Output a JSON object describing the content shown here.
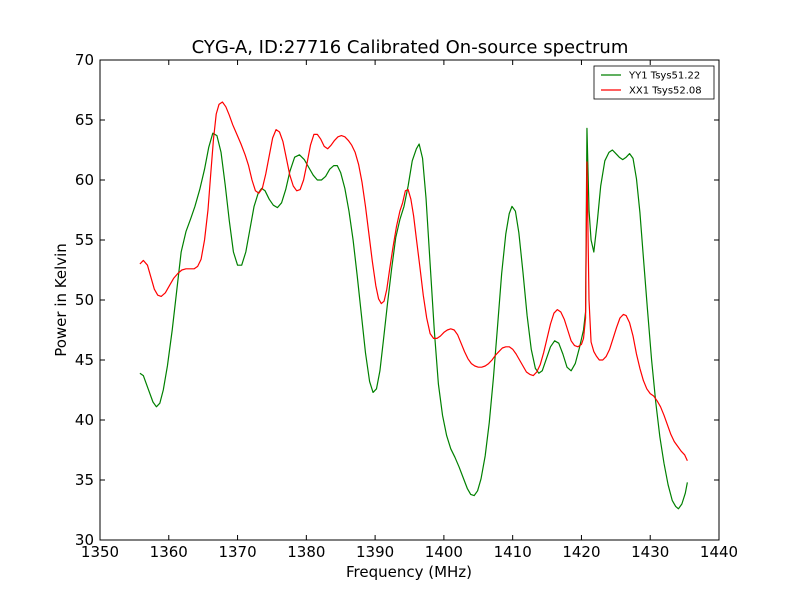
{
  "chart_data": {
    "type": "line",
    "title": "CYG-A, ID:27716 Calibrated On-source spectrum",
    "xlabel": "Frequency (MHz)",
    "ylabel": "Power in Kelvin",
    "xlim": [
      1350,
      1440
    ],
    "ylim": [
      30,
      70
    ],
    "xticks": [
      "1350",
      "1360",
      "1370",
      "1380",
      "1390",
      "1400",
      "1410",
      "1420",
      "1430",
      "1440"
    ],
    "yticks": [
      "30",
      "35",
      "40",
      "45",
      "50",
      "55",
      "60",
      "65",
      "70"
    ],
    "grid": false,
    "legend_position": "top-right",
    "series": [
      {
        "name": "YY1 Tsys51.22",
        "color": "#008000",
        "points": [
          [
            1355.8,
            43.9
          ],
          [
            1356.3,
            43.7
          ],
          [
            1357.0,
            42.6
          ],
          [
            1357.7,
            41.5
          ],
          [
            1358.2,
            41.1
          ],
          [
            1358.7,
            41.4
          ],
          [
            1359.2,
            42.5
          ],
          [
            1359.8,
            44.5
          ],
          [
            1360.5,
            47.5
          ],
          [
            1361.2,
            51.0
          ],
          [
            1361.8,
            54.0
          ],
          [
            1362.5,
            55.7
          ],
          [
            1363.2,
            56.8
          ],
          [
            1363.8,
            57.8
          ],
          [
            1364.5,
            59.2
          ],
          [
            1365.2,
            60.9
          ],
          [
            1365.8,
            62.7
          ],
          [
            1366.4,
            63.9
          ],
          [
            1367.0,
            63.7
          ],
          [
            1367.6,
            62.3
          ],
          [
            1368.2,
            59.6
          ],
          [
            1368.8,
            56.6
          ],
          [
            1369.4,
            54.0
          ],
          [
            1370.0,
            52.9
          ],
          [
            1370.6,
            52.9
          ],
          [
            1371.2,
            54.0
          ],
          [
            1371.8,
            55.9
          ],
          [
            1372.4,
            57.8
          ],
          [
            1373.0,
            58.9
          ],
          [
            1373.5,
            59.3
          ],
          [
            1374.0,
            59.1
          ],
          [
            1374.6,
            58.4
          ],
          [
            1375.2,
            57.9
          ],
          [
            1375.8,
            57.7
          ],
          [
            1376.4,
            58.1
          ],
          [
            1377.0,
            59.2
          ],
          [
            1377.6,
            60.7
          ],
          [
            1378.3,
            61.9
          ],
          [
            1379.0,
            62.1
          ],
          [
            1379.7,
            61.7
          ],
          [
            1380.4,
            61.0
          ],
          [
            1381.0,
            60.4
          ],
          [
            1381.6,
            60.0
          ],
          [
            1382.2,
            60.0
          ],
          [
            1382.8,
            60.3
          ],
          [
            1383.4,
            60.9
          ],
          [
            1384.0,
            61.2
          ],
          [
            1384.5,
            61.2
          ],
          [
            1385.0,
            60.6
          ],
          [
            1385.6,
            59.3
          ],
          [
            1386.2,
            57.4
          ],
          [
            1386.8,
            55.0
          ],
          [
            1387.4,
            52.0
          ],
          [
            1388.0,
            48.8
          ],
          [
            1388.6,
            45.6
          ],
          [
            1389.2,
            43.2
          ],
          [
            1389.7,
            42.3
          ],
          [
            1390.2,
            42.6
          ],
          [
            1390.7,
            44.1
          ],
          [
            1391.2,
            46.6
          ],
          [
            1391.8,
            49.7
          ],
          [
            1392.4,
            52.6
          ],
          [
            1393.0,
            55.2
          ],
          [
            1393.6,
            56.7
          ],
          [
            1394.2,
            57.8
          ],
          [
            1394.8,
            59.5
          ],
          [
            1395.4,
            61.6
          ],
          [
            1396.0,
            62.6
          ],
          [
            1396.4,
            63.0
          ],
          [
            1396.9,
            61.8
          ],
          [
            1397.4,
            58.5
          ],
          [
            1398.0,
            53.0
          ],
          [
            1398.6,
            47.5
          ],
          [
            1399.2,
            43.0
          ],
          [
            1399.8,
            40.4
          ],
          [
            1400.4,
            38.7
          ],
          [
            1401.0,
            37.6
          ],
          [
            1401.6,
            36.9
          ],
          [
            1402.2,
            36.1
          ],
          [
            1402.8,
            35.2
          ],
          [
            1403.4,
            34.3
          ],
          [
            1403.9,
            33.8
          ],
          [
            1404.4,
            33.7
          ],
          [
            1404.9,
            34.1
          ],
          [
            1405.4,
            35.1
          ],
          [
            1406.0,
            37.0
          ],
          [
            1406.6,
            39.8
          ],
          [
            1407.2,
            43.5
          ],
          [
            1407.8,
            47.8
          ],
          [
            1408.4,
            52.2
          ],
          [
            1409.0,
            55.5
          ],
          [
            1409.5,
            57.2
          ],
          [
            1409.9,
            57.8
          ],
          [
            1410.4,
            57.4
          ],
          [
            1410.9,
            55.6
          ],
          [
            1411.5,
            52.3
          ],
          [
            1412.1,
            48.7
          ],
          [
            1412.7,
            45.9
          ],
          [
            1413.3,
            44.3
          ],
          [
            1413.8,
            43.9
          ],
          [
            1414.3,
            44.1
          ],
          [
            1414.9,
            45.1
          ],
          [
            1415.5,
            46.1
          ],
          [
            1416.1,
            46.6
          ],
          [
            1416.7,
            46.4
          ],
          [
            1417.3,
            45.5
          ],
          [
            1417.9,
            44.4
          ],
          [
            1418.5,
            44.1
          ],
          [
            1419.1,
            44.7
          ],
          [
            1419.7,
            46.0
          ],
          [
            1420.3,
            47.5
          ],
          [
            1420.6,
            49.0
          ],
          [
            1420.8,
            64.3
          ],
          [
            1421.1,
            57.5
          ],
          [
            1421.4,
            55.0
          ],
          [
            1421.8,
            54.0
          ],
          [
            1422.3,
            56.5
          ],
          [
            1422.8,
            59.5
          ],
          [
            1423.4,
            61.6
          ],
          [
            1424.0,
            62.3
          ],
          [
            1424.5,
            62.5
          ],
          [
            1425.0,
            62.2
          ],
          [
            1425.5,
            61.9
          ],
          [
            1426.0,
            61.7
          ],
          [
            1426.5,
            61.9
          ],
          [
            1427.0,
            62.2
          ],
          [
            1427.5,
            61.8
          ],
          [
            1428.0,
            60.1
          ],
          [
            1428.5,
            57.3
          ],
          [
            1429.0,
            53.6
          ],
          [
            1429.6,
            49.2
          ],
          [
            1430.2,
            45.0
          ],
          [
            1430.8,
            41.5
          ],
          [
            1431.4,
            38.6
          ],
          [
            1432.0,
            36.4
          ],
          [
            1432.6,
            34.6
          ],
          [
            1433.2,
            33.3
          ],
          [
            1433.7,
            32.8
          ],
          [
            1434.1,
            32.6
          ],
          [
            1434.6,
            33.0
          ],
          [
            1435.1,
            33.9
          ],
          [
            1435.4,
            34.8
          ]
        ]
      },
      {
        "name": "XX1 Tsys52.08",
        "color": "#ff0000",
        "points": [
          [
            1355.8,
            53.0
          ],
          [
            1356.3,
            53.3
          ],
          [
            1356.9,
            52.9
          ],
          [
            1357.4,
            51.9
          ],
          [
            1357.9,
            50.9
          ],
          [
            1358.4,
            50.4
          ],
          [
            1358.9,
            50.3
          ],
          [
            1359.5,
            50.6
          ],
          [
            1360.1,
            51.2
          ],
          [
            1360.7,
            51.8
          ],
          [
            1361.3,
            52.2
          ],
          [
            1361.9,
            52.5
          ],
          [
            1362.5,
            52.6
          ],
          [
            1363.1,
            52.6
          ],
          [
            1363.7,
            52.6
          ],
          [
            1364.2,
            52.8
          ],
          [
            1364.7,
            53.4
          ],
          [
            1365.2,
            55.0
          ],
          [
            1365.7,
            57.5
          ],
          [
            1366.1,
            60.5
          ],
          [
            1366.5,
            63.4
          ],
          [
            1366.9,
            65.5
          ],
          [
            1367.3,
            66.3
          ],
          [
            1367.8,
            66.5
          ],
          [
            1368.3,
            66.1
          ],
          [
            1368.8,
            65.4
          ],
          [
            1369.3,
            64.6
          ],
          [
            1369.9,
            63.8
          ],
          [
            1370.5,
            63.0
          ],
          [
            1371.1,
            62.1
          ],
          [
            1371.6,
            61.2
          ],
          [
            1372.1,
            60.0
          ],
          [
            1372.6,
            59.1
          ],
          [
            1373.1,
            58.9
          ],
          [
            1373.6,
            59.3
          ],
          [
            1374.1,
            60.5
          ],
          [
            1374.6,
            62.0
          ],
          [
            1375.1,
            63.5
          ],
          [
            1375.6,
            64.2
          ],
          [
            1376.1,
            64.0
          ],
          [
            1376.6,
            63.2
          ],
          [
            1377.1,
            61.8
          ],
          [
            1377.6,
            60.4
          ],
          [
            1378.1,
            59.5
          ],
          [
            1378.6,
            59.1
          ],
          [
            1379.1,
            59.2
          ],
          [
            1379.6,
            60.0
          ],
          [
            1380.1,
            61.4
          ],
          [
            1380.6,
            62.9
          ],
          [
            1381.1,
            63.8
          ],
          [
            1381.6,
            63.8
          ],
          [
            1382.1,
            63.4
          ],
          [
            1382.6,
            62.8
          ],
          [
            1383.1,
            62.6
          ],
          [
            1383.6,
            62.9
          ],
          [
            1384.1,
            63.3
          ],
          [
            1384.6,
            63.6
          ],
          [
            1385.1,
            63.7
          ],
          [
            1385.6,
            63.6
          ],
          [
            1386.1,
            63.3
          ],
          [
            1386.6,
            62.9
          ],
          [
            1387.1,
            62.3
          ],
          [
            1387.6,
            61.3
          ],
          [
            1388.1,
            59.8
          ],
          [
            1388.6,
            57.8
          ],
          [
            1389.1,
            55.5
          ],
          [
            1389.6,
            53.2
          ],
          [
            1390.1,
            51.2
          ],
          [
            1390.5,
            50.1
          ],
          [
            1390.9,
            49.7
          ],
          [
            1391.3,
            49.9
          ],
          [
            1391.7,
            50.9
          ],
          [
            1392.1,
            52.5
          ],
          [
            1392.6,
            54.4
          ],
          [
            1393.1,
            56.1
          ],
          [
            1393.6,
            57.4
          ],
          [
            1394.0,
            58.1
          ],
          [
            1394.4,
            59.1
          ],
          [
            1394.8,
            59.2
          ],
          [
            1395.2,
            58.4
          ],
          [
            1395.6,
            57.0
          ],
          [
            1396.0,
            55.1
          ],
          [
            1396.5,
            52.8
          ],
          [
            1397.0,
            50.4
          ],
          [
            1397.5,
            48.5
          ],
          [
            1398.0,
            47.2
          ],
          [
            1398.5,
            46.8
          ],
          [
            1399.0,
            46.8
          ],
          [
            1399.5,
            47.0
          ],
          [
            1400.0,
            47.3
          ],
          [
            1400.5,
            47.5
          ],
          [
            1401.0,
            47.6
          ],
          [
            1401.5,
            47.5
          ],
          [
            1402.0,
            47.1
          ],
          [
            1402.5,
            46.4
          ],
          [
            1403.0,
            45.7
          ],
          [
            1403.5,
            45.1
          ],
          [
            1404.0,
            44.7
          ],
          [
            1404.5,
            44.5
          ],
          [
            1405.0,
            44.4
          ],
          [
            1405.5,
            44.4
          ],
          [
            1406.0,
            44.5
          ],
          [
            1406.5,
            44.7
          ],
          [
            1407.0,
            45.0
          ],
          [
            1407.5,
            45.4
          ],
          [
            1408.0,
            45.7
          ],
          [
            1408.5,
            46.0
          ],
          [
            1409.0,
            46.1
          ],
          [
            1409.5,
            46.1
          ],
          [
            1410.0,
            45.9
          ],
          [
            1410.5,
            45.5
          ],
          [
            1411.0,
            45.0
          ],
          [
            1411.5,
            44.5
          ],
          [
            1412.0,
            44.0
          ],
          [
            1412.5,
            43.8
          ],
          [
            1413.0,
            43.7
          ],
          [
            1413.5,
            44.0
          ],
          [
            1414.0,
            44.6
          ],
          [
            1414.5,
            45.6
          ],
          [
            1415.0,
            46.8
          ],
          [
            1415.5,
            48.0
          ],
          [
            1416.0,
            48.9
          ],
          [
            1416.5,
            49.2
          ],
          [
            1417.0,
            49.0
          ],
          [
            1417.5,
            48.4
          ],
          [
            1418.0,
            47.5
          ],
          [
            1418.5,
            46.6
          ],
          [
            1419.0,
            46.2
          ],
          [
            1419.5,
            46.1
          ],
          [
            1420.0,
            46.3
          ],
          [
            1420.3,
            46.8
          ],
          [
            1420.6,
            48.5
          ],
          [
            1420.8,
            61.5
          ],
          [
            1421.1,
            50.0
          ],
          [
            1421.4,
            46.5
          ],
          [
            1421.8,
            45.7
          ],
          [
            1422.2,
            45.3
          ],
          [
            1422.6,
            45.0
          ],
          [
            1423.1,
            45.0
          ],
          [
            1423.6,
            45.3
          ],
          [
            1424.1,
            45.9
          ],
          [
            1424.6,
            46.8
          ],
          [
            1425.1,
            47.7
          ],
          [
            1425.6,
            48.5
          ],
          [
            1426.1,
            48.8
          ],
          [
            1426.5,
            48.7
          ],
          [
            1427.0,
            48.1
          ],
          [
            1427.5,
            47.0
          ],
          [
            1428.0,
            45.5
          ],
          [
            1428.5,
            44.3
          ],
          [
            1429.0,
            43.3
          ],
          [
            1429.5,
            42.6
          ],
          [
            1430.0,
            42.2
          ],
          [
            1430.5,
            42.0
          ],
          [
            1431.0,
            41.6
          ],
          [
            1431.5,
            41.1
          ],
          [
            1432.0,
            40.4
          ],
          [
            1432.5,
            39.6
          ],
          [
            1433.0,
            38.8
          ],
          [
            1433.5,
            38.2
          ],
          [
            1434.0,
            37.8
          ],
          [
            1434.5,
            37.4
          ],
          [
            1435.0,
            37.1
          ],
          [
            1435.4,
            36.6
          ]
        ]
      }
    ]
  }
}
